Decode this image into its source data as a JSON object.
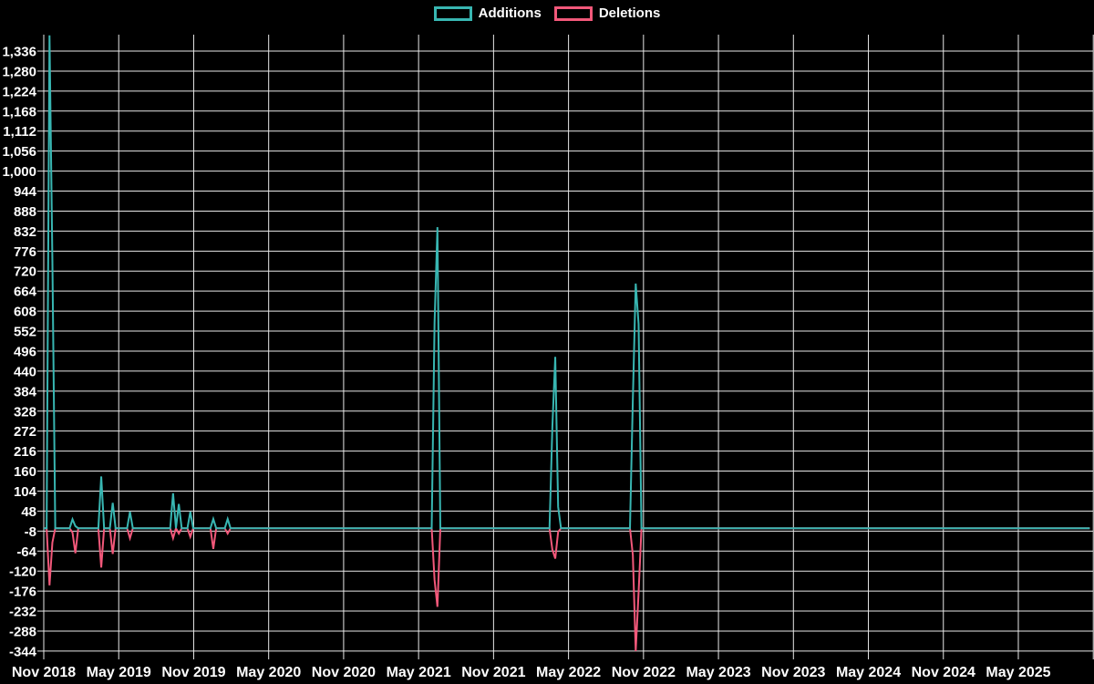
{
  "legend": {
    "additions_label": "Additions",
    "deletions_label": "Deletions"
  },
  "colors": {
    "additions": "#38b6b2",
    "deletions": "#f2587a",
    "grid": "#e8e8e8",
    "text": "#ffffff",
    "background": "#000000"
  },
  "chart_data": {
    "type": "line",
    "series_names": [
      "Additions",
      "Deletions"
    ],
    "legend_position": "top",
    "grid": true,
    "x_tick_labels": [
      "Nov 2018",
      "May 2019",
      "Nov 2019",
      "May 2020",
      "Nov 2020",
      "May 2021",
      "Nov 2021",
      "May 2022",
      "Nov 2022",
      "May 2023",
      "Nov 2023",
      "May 2024",
      "Nov 2024",
      "May 2025"
    ],
    "y_ticks": [
      1336,
      1280,
      1224,
      1168,
      1112,
      1056,
      1000,
      944,
      888,
      832,
      776,
      720,
      664,
      608,
      552,
      496,
      440,
      384,
      328,
      272,
      216,
      160,
      104,
      48,
      -8,
      -64,
      -120,
      -176,
      -232,
      -288,
      -344
    ],
    "y_tick_labels": [
      "1,336",
      "1,280",
      "1,224",
      "1,168",
      "1,112",
      "1,056",
      "1,000",
      "944",
      "888",
      "832",
      "776",
      "720",
      "664",
      "608",
      "552",
      "496",
      "440",
      "384",
      "328",
      "272",
      "216",
      "160",
      "104",
      "48",
      "-8",
      "-64",
      "-120",
      "-176",
      "-232",
      "-288",
      "-344"
    ],
    "ylim": [
      -344,
      1336
    ],
    "x_start_date": "2018-11-04",
    "x_total_weeks": 364,
    "x_tick_interval_months": 6,
    "default_value": 0,
    "points_nonzero": [
      {
        "week": 2,
        "date": "2018-11-18",
        "additions": 1380,
        "deletions": -160
      },
      {
        "week": 3,
        "date": "2018-11-25",
        "additions": 750,
        "deletions": -40
      },
      {
        "week": 10,
        "date": "2019-01-13",
        "additions": 25,
        "deletions": -12
      },
      {
        "week": 11,
        "date": "2019-01-20",
        "additions": 6,
        "deletions": -70
      },
      {
        "week": 20,
        "date": "2019-03-24",
        "additions": 145,
        "deletions": -110
      },
      {
        "week": 24,
        "date": "2019-04-21",
        "additions": 71,
        "deletions": -72
      },
      {
        "week": 30,
        "date": "2019-06-02",
        "additions": 46,
        "deletions": -28
      },
      {
        "week": 45,
        "date": "2019-09-15",
        "additions": 98,
        "deletions": -28
      },
      {
        "week": 47,
        "date": "2019-09-29",
        "additions": 68,
        "deletions": -15
      },
      {
        "week": 51,
        "date": "2019-10-27",
        "additions": 46,
        "deletions": -24
      },
      {
        "week": 59,
        "date": "2019-12-22",
        "additions": 26,
        "deletions": -58
      },
      {
        "week": 64,
        "date": "2020-01-26",
        "additions": 26,
        "deletions": -15
      },
      {
        "week": 136,
        "date": "2021-06-13",
        "additions": 575,
        "deletions": -145
      },
      {
        "week": 137,
        "date": "2021-06-20",
        "additions": 843,
        "deletions": -220
      },
      {
        "week": 177,
        "date": "2022-03-27",
        "additions": 285,
        "deletions": -60
      },
      {
        "week": 178,
        "date": "2022-04-03",
        "additions": 480,
        "deletions": -85
      },
      {
        "week": 179,
        "date": "2022-04-10",
        "additions": 60,
        "deletions": -10
      },
      {
        "week": 205,
        "date": "2022-10-16",
        "additions": 360,
        "deletions": -75
      },
      {
        "week": 206,
        "date": "2022-10-23",
        "additions": 685,
        "deletions": -344
      },
      {
        "week": 207,
        "date": "2022-10-30",
        "additions": 572,
        "deletions": -180
      }
    ]
  }
}
